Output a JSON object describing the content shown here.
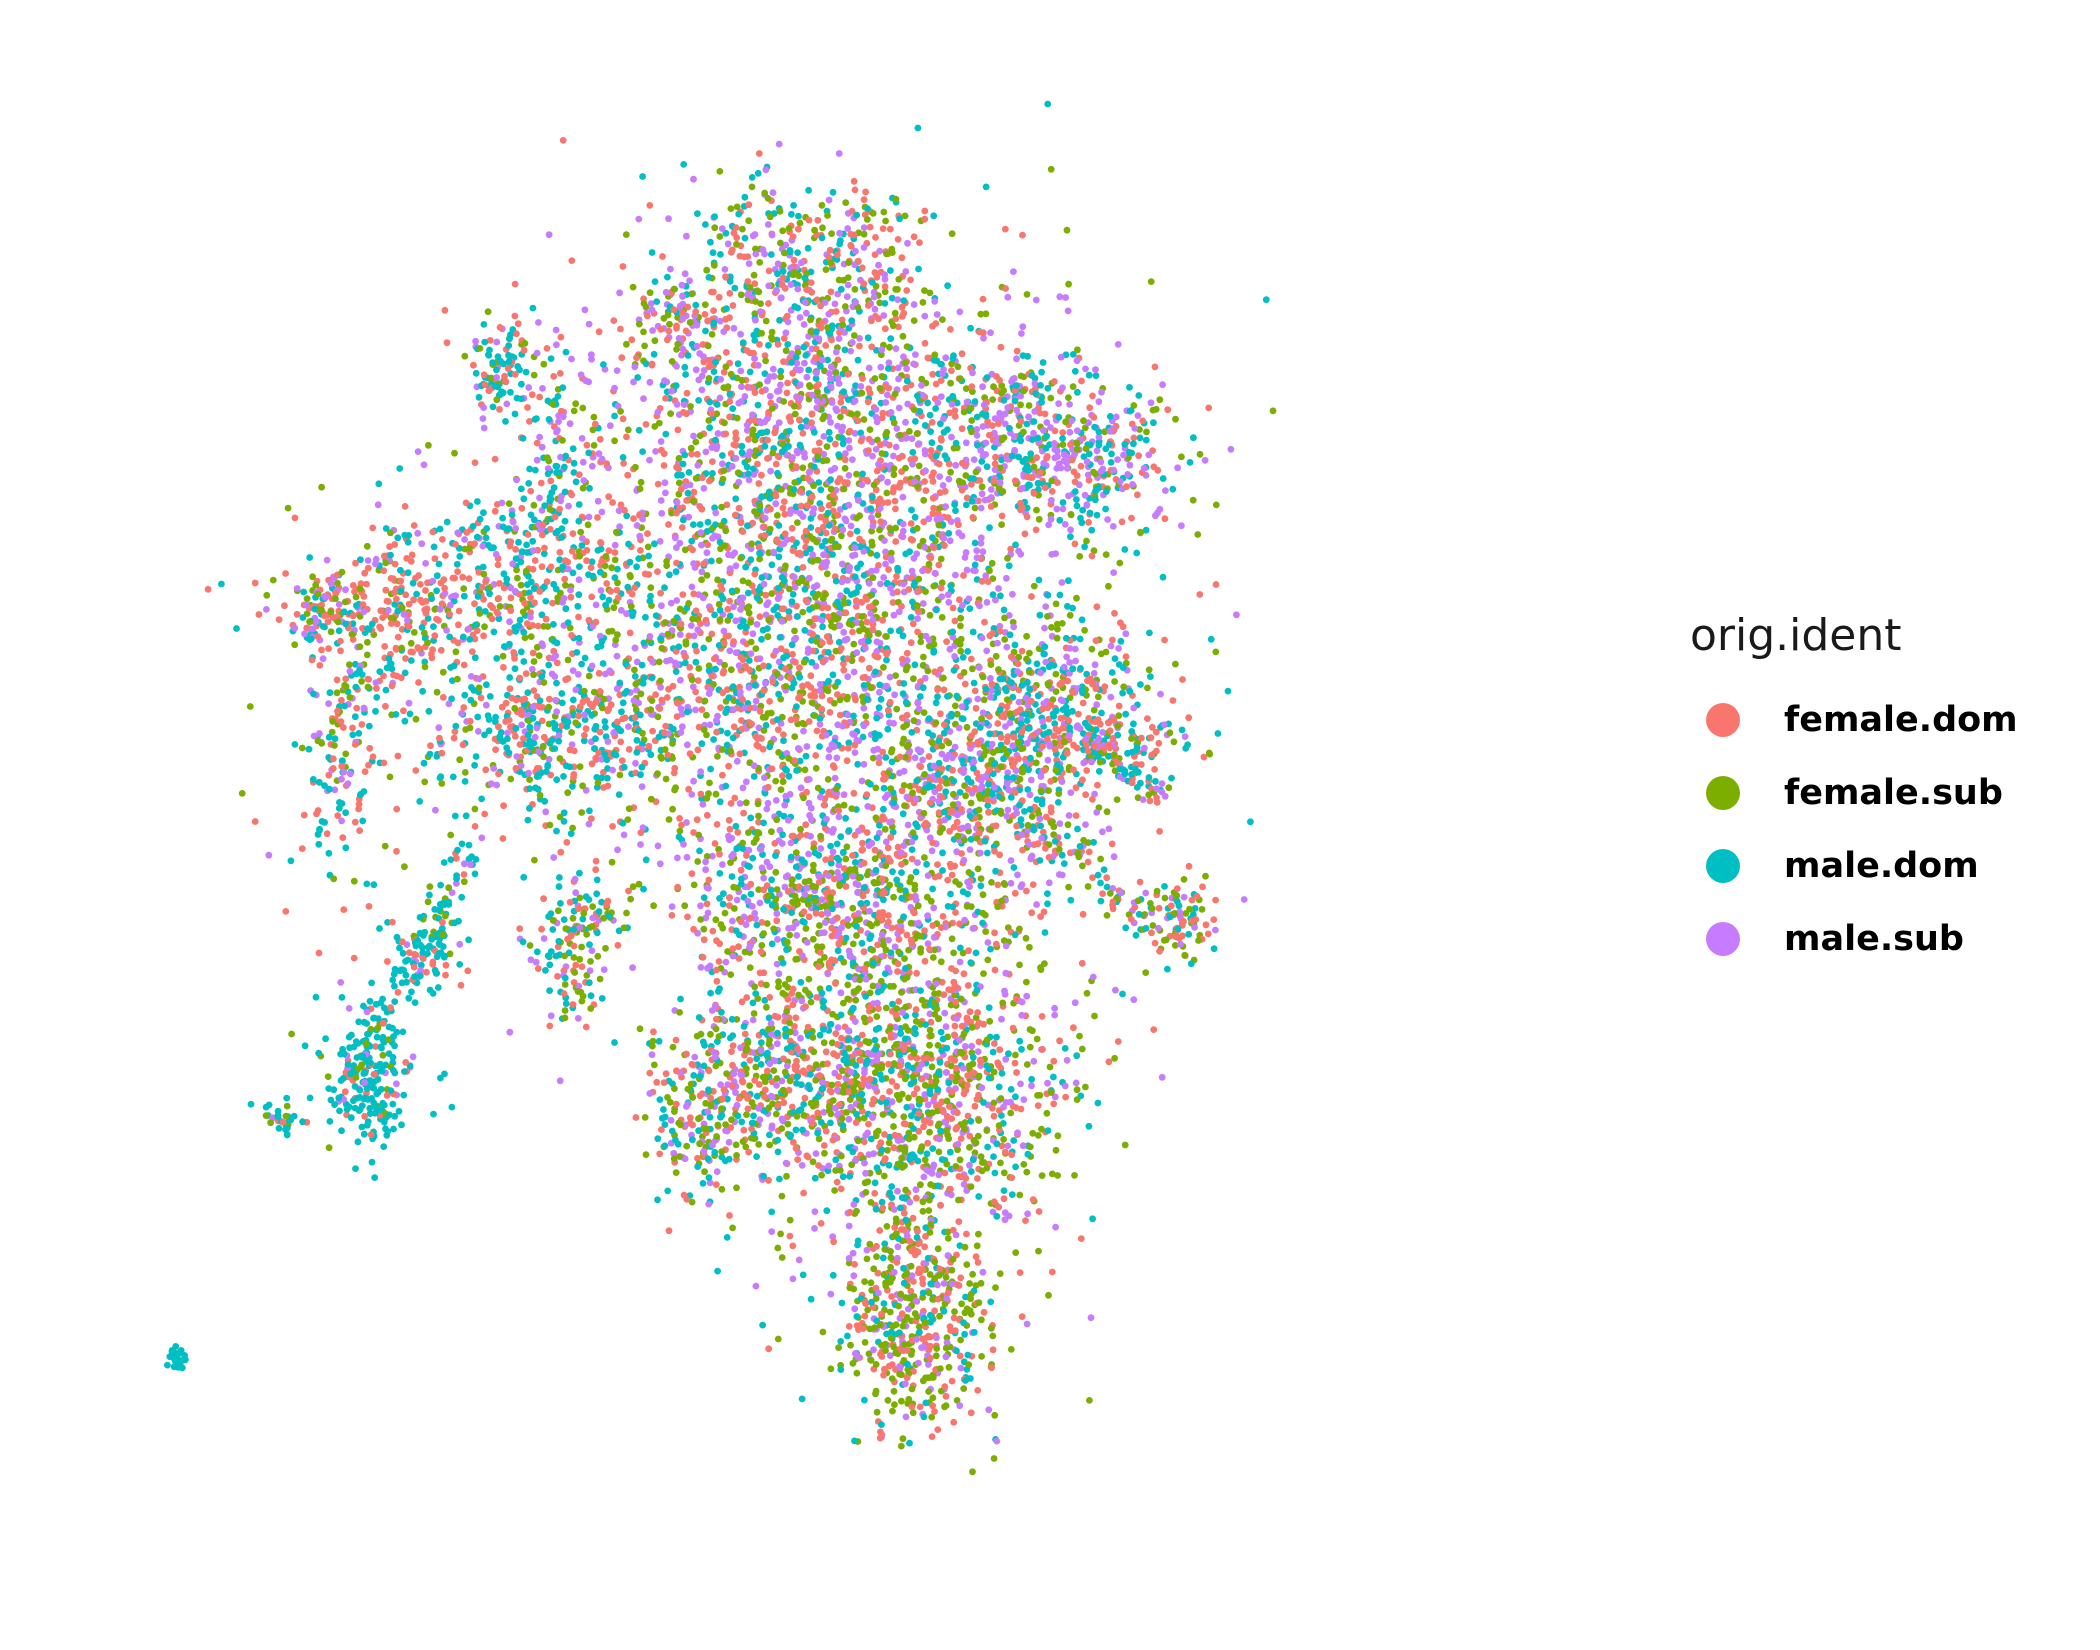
{
  "chart_data": {
    "type": "scatter",
    "title": "",
    "xlabel": "",
    "ylabel": "",
    "grid": false,
    "axes_visible": false,
    "legend_position": "right",
    "legend_title": "orig.ident",
    "series": [
      {
        "name": "female.dom",
        "color": "#F8766D"
      },
      {
        "name": "female.sub",
        "color": "#7CAE00"
      },
      {
        "name": "male.dom",
        "color": "#00BFC4"
      },
      {
        "name": "male.sub",
        "color": "#C77CFF"
      }
    ],
    "xlim": [
      0,
      100
    ],
    "ylim": [
      0,
      100
    ],
    "clusters": [
      {
        "x": 47,
        "y": 62,
        "sx": 9,
        "sy": 10,
        "n": 2600,
        "mix": [
          0.28,
          0.22,
          0.22,
          0.28
        ]
      },
      {
        "x": 47,
        "y": 78,
        "sx": 8,
        "sy": 5,
        "n": 900,
        "mix": [
          0.3,
          0.2,
          0.2,
          0.3
        ]
      },
      {
        "x": 44,
        "y": 88,
        "sx": 2.5,
        "sy": 3,
        "n": 160,
        "mix": [
          0.25,
          0.25,
          0.3,
          0.2
        ]
      },
      {
        "x": 51,
        "y": 88,
        "sx": 2,
        "sy": 2.5,
        "n": 110,
        "mix": [
          0.3,
          0.25,
          0.2,
          0.25
        ]
      },
      {
        "x": 38,
        "y": 84,
        "sx": 1.5,
        "sy": 1.5,
        "n": 70,
        "mix": [
          0.3,
          0.2,
          0.2,
          0.3
        ]
      },
      {
        "x": 64,
        "y": 74,
        "sx": 4,
        "sy": 2.5,
        "n": 420,
        "mix": [
          0.22,
          0.18,
          0.3,
          0.3
        ]
      },
      {
        "x": 54,
        "y": 30,
        "sx": 5,
        "sy": 7,
        "n": 1300,
        "mix": [
          0.27,
          0.38,
          0.18,
          0.17
        ]
      },
      {
        "x": 54,
        "y": 13,
        "sx": 2.5,
        "sy": 4,
        "n": 460,
        "mix": [
          0.28,
          0.42,
          0.15,
          0.15
        ]
      },
      {
        "x": 45,
        "y": 30,
        "sx": 4,
        "sy": 4,
        "n": 380,
        "mix": [
          0.25,
          0.3,
          0.25,
          0.2
        ]
      },
      {
        "x": 40,
        "y": 27,
        "sx": 2,
        "sy": 3,
        "n": 180,
        "mix": [
          0.25,
          0.3,
          0.25,
          0.2
        ]
      },
      {
        "x": 31,
        "y": 40,
        "sx": 1.5,
        "sy": 3,
        "n": 150,
        "mix": [
          0.25,
          0.3,
          0.3,
          0.15
        ]
      },
      {
        "x": 29,
        "y": 55,
        "sx": 5,
        "sy": 3,
        "n": 420,
        "mix": [
          0.3,
          0.15,
          0.42,
          0.13
        ]
      },
      {
        "x": 27,
        "y": 66,
        "sx": 4,
        "sy": 3,
        "n": 320,
        "mix": [
          0.32,
          0.16,
          0.38,
          0.14
        ]
      },
      {
        "x": 19,
        "y": 63,
        "sx": 4,
        "sy": 2.5,
        "n": 230,
        "mix": [
          0.45,
          0.2,
          0.2,
          0.15
        ]
      },
      {
        "x": 14,
        "y": 63,
        "sx": 1.3,
        "sy": 1.5,
        "n": 90,
        "mix": [
          0.3,
          0.3,
          0.25,
          0.15
        ]
      },
      {
        "x": 15,
        "y": 52,
        "sx": 1.5,
        "sy": 4,
        "n": 120,
        "mix": [
          0.3,
          0.2,
          0.35,
          0.15
        ]
      },
      {
        "x": 26,
        "y": 80,
        "sx": 1,
        "sy": 1.8,
        "n": 90,
        "mix": [
          0.2,
          0.1,
          0.6,
          0.1
        ]
      },
      {
        "x": 48,
        "y": 43,
        "sx": 5,
        "sy": 3,
        "n": 500,
        "mix": [
          0.25,
          0.25,
          0.25,
          0.25
        ]
      },
      {
        "x": 59,
        "y": 51,
        "sx": 4,
        "sy": 3,
        "n": 400,
        "mix": [
          0.3,
          0.22,
          0.25,
          0.23
        ]
      },
      {
        "x": 63,
        "y": 57,
        "sx": 3,
        "sy": 3,
        "n": 240,
        "mix": [
          0.28,
          0.2,
          0.32,
          0.2
        ]
      },
      {
        "x": 68,
        "y": 54,
        "sx": 3,
        "sy": 1.2,
        "n": 110,
        "mix": [
          0.35,
          0.15,
          0.3,
          0.2
        ]
      },
      {
        "x": 72,
        "y": 41,
        "sx": 1.2,
        "sy": 1.5,
        "n": 90,
        "mix": [
          0.3,
          0.3,
          0.25,
          0.15
        ]
      },
      {
        "x": 17,
        "y": 30,
        "sx": 1.5,
        "sy": 2.5,
        "n": 190,
        "mix": [
          0.08,
          0.07,
          0.8,
          0.05
        ]
      },
      {
        "x": 21,
        "y": 39,
        "sx": 1.2,
        "sy": 2,
        "n": 80,
        "mix": [
          0.15,
          0.1,
          0.65,
          0.1
        ]
      },
      {
        "x": 11,
        "y": 27,
        "sx": 0.7,
        "sy": 0.6,
        "n": 30,
        "mix": [
          0.1,
          0.1,
          0.75,
          0.05
        ]
      },
      {
        "x": 4,
        "y": 10,
        "sx": 0.3,
        "sy": 0.4,
        "n": 22,
        "mix": [
          0,
          0,
          1,
          0
        ]
      }
    ],
    "filaments": [
      {
        "x0": 15,
        "y0": 28,
        "x1": 24,
        "y1": 47,
        "n": 120,
        "spread": 0.7,
        "mix": [
          0.15,
          0.15,
          0.6,
          0.1
        ]
      },
      {
        "x0": 62,
        "y0": 56,
        "x1": 71,
        "y1": 50,
        "n": 90,
        "spread": 0.6,
        "mix": [
          0.35,
          0.15,
          0.35,
          0.15
        ]
      },
      {
        "x0": 62,
        "y0": 48,
        "x1": 71,
        "y1": 40,
        "n": 90,
        "spread": 0.8,
        "mix": [
          0.3,
          0.25,
          0.3,
          0.15
        ]
      },
      {
        "x0": 15,
        "y0": 56,
        "x1": 21,
        "y1": 61,
        "n": 60,
        "spread": 0.7,
        "mix": [
          0.35,
          0.2,
          0.3,
          0.15
        ]
      },
      {
        "x0": 29,
        "y0": 82,
        "x1": 30,
        "y1": 69,
        "n": 70,
        "spread": 0.8,
        "mix": [
          0.2,
          0.1,
          0.55,
          0.15
        ]
      },
      {
        "x0": 59,
        "y0": 78,
        "x1": 65,
        "y1": 80,
        "n": 60,
        "spread": 1,
        "mix": [
          0.3,
          0.2,
          0.25,
          0.25
        ]
      }
    ]
  }
}
